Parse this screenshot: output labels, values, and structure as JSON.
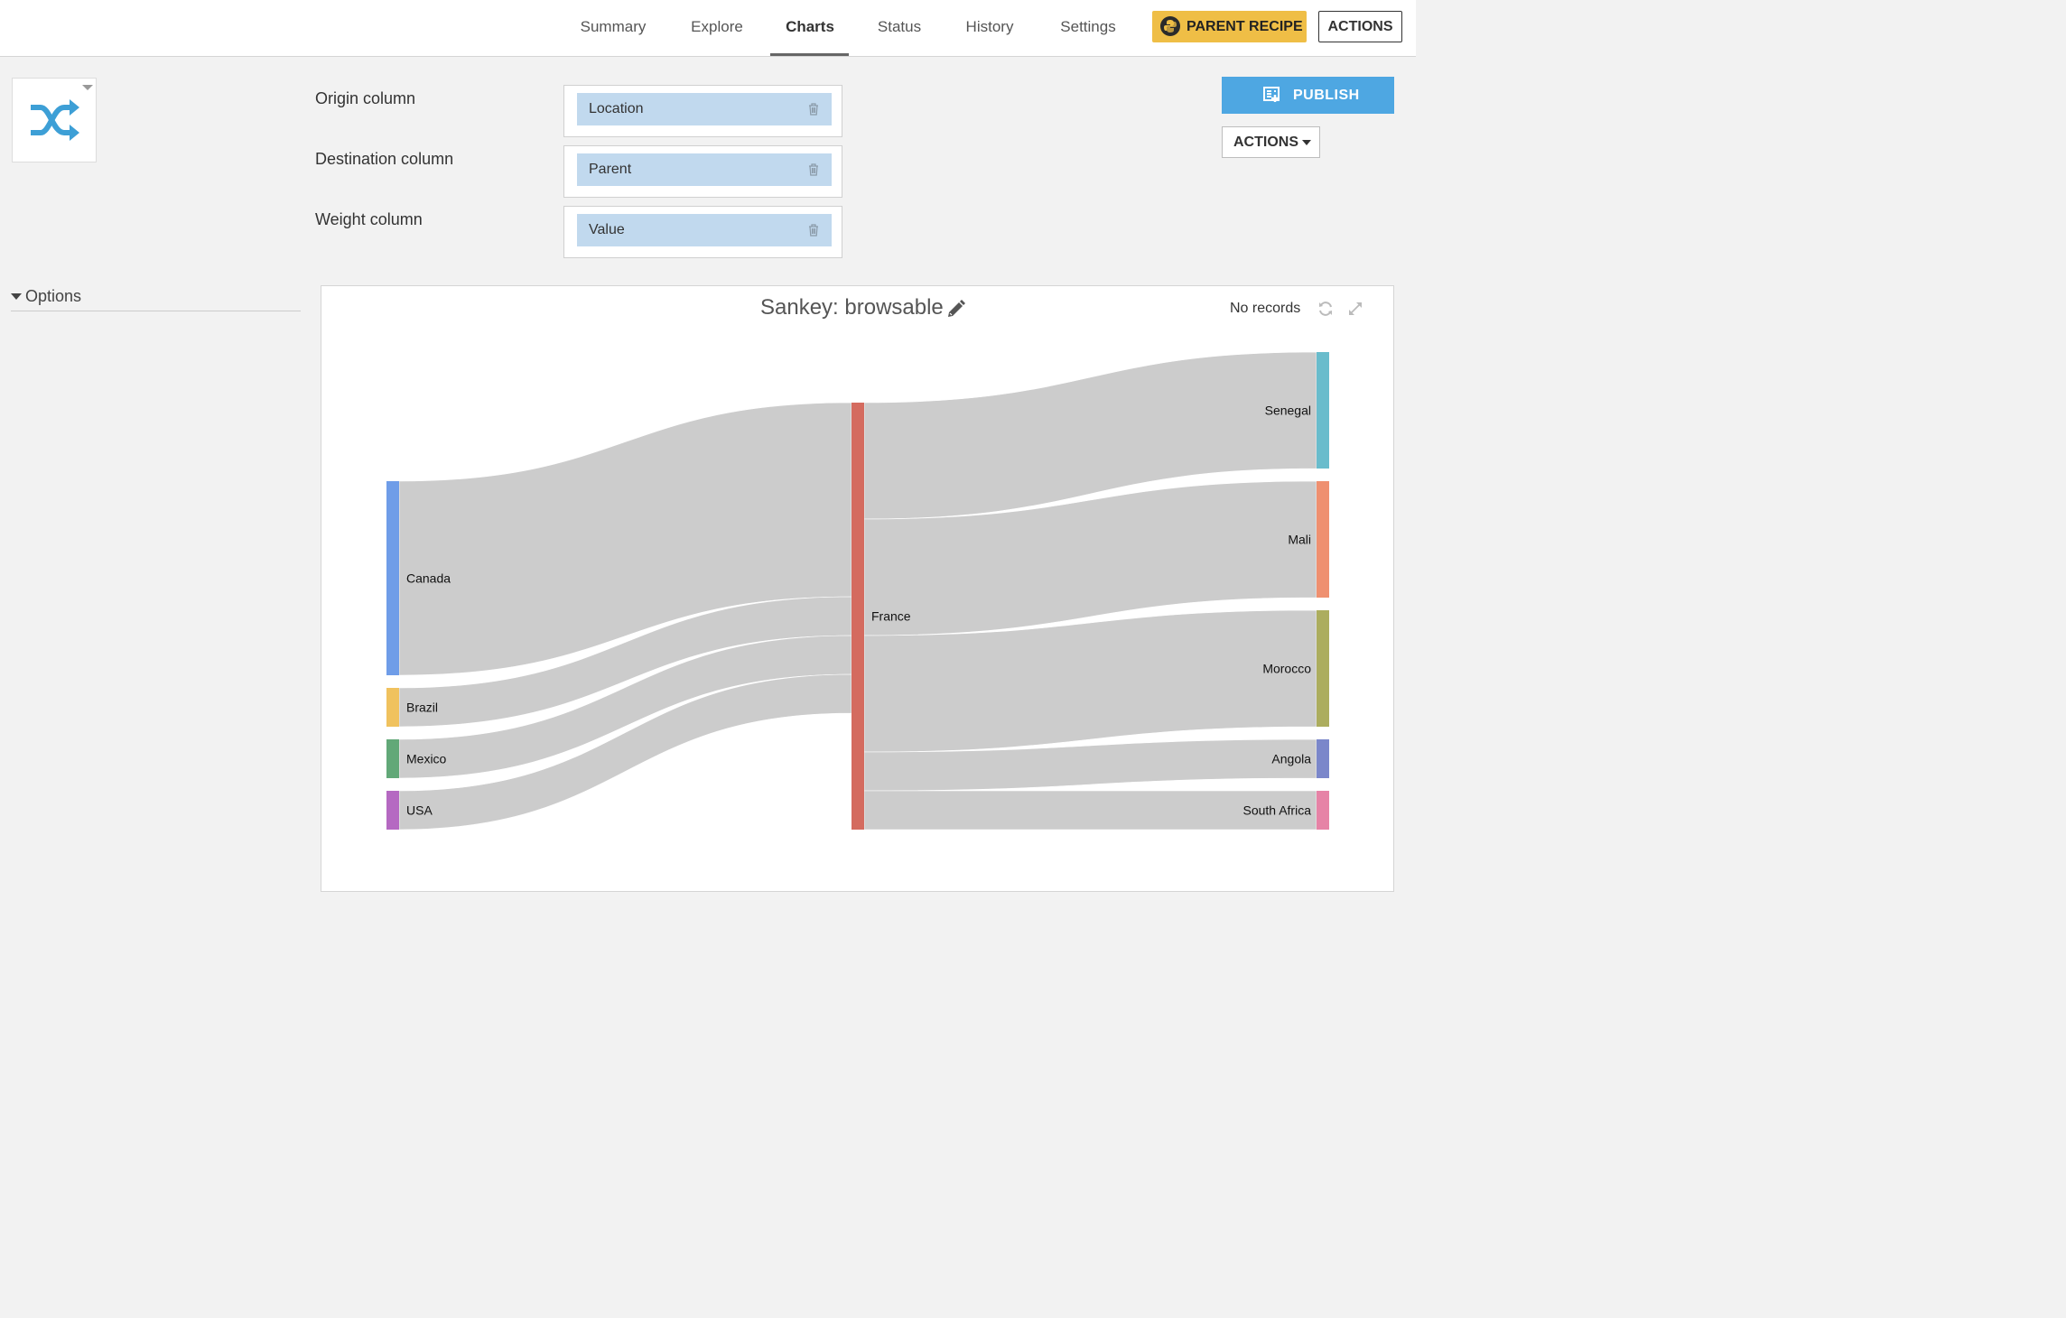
{
  "nav": {
    "tabs": [
      {
        "label": "Summary"
      },
      {
        "label": "Explore"
      },
      {
        "label": "Charts"
      },
      {
        "label": "Status"
      },
      {
        "label": "History"
      },
      {
        "label": "Settings"
      }
    ],
    "active_tab": "Charts",
    "parent_recipe_label": "PARENT RECIPE",
    "actions_label": "ACTIONS"
  },
  "chart_type_icon": "shuffle-icon",
  "fields": {
    "origin": {
      "label": "Origin column",
      "value": "Location"
    },
    "destination": {
      "label": "Destination column",
      "value": "Parent"
    },
    "weight": {
      "label": "Weight column",
      "value": "Value"
    }
  },
  "publish_label": "PUBLISH",
  "actions_label": "ACTIONS",
  "options_label": "Options",
  "chart_header": {
    "title": "Sankey: browsable",
    "status": "No records"
  },
  "colors": {
    "accent_blue": "#4ea7e2",
    "parent_recipe": "#efbe46",
    "pill": "#c1d9ee",
    "link": "#cccccc"
  },
  "chart_data": {
    "type": "sankey",
    "title": "Sankey: browsable",
    "nodes": [
      {
        "name": "Canada",
        "column": 0,
        "color": "#6f9de8"
      },
      {
        "name": "Brazil",
        "column": 0,
        "color": "#f0c25e"
      },
      {
        "name": "Mexico",
        "column": 0,
        "color": "#62a878"
      },
      {
        "name": "USA",
        "column": 0,
        "color": "#b569c2"
      },
      {
        "name": "France",
        "column": 1,
        "color": "#d46b5f"
      },
      {
        "name": "Senegal",
        "column": 2,
        "color": "#69bccc"
      },
      {
        "name": "Mali",
        "column": 2,
        "color": "#ef9070"
      },
      {
        "name": "Morocco",
        "column": 2,
        "color": "#acad5e"
      },
      {
        "name": "Angola",
        "column": 2,
        "color": "#7b87ca"
      },
      {
        "name": "South Africa",
        "column": 2,
        "color": "#e683a6"
      }
    ],
    "links": [
      {
        "source": "Canada",
        "target": "France",
        "value": 5
      },
      {
        "source": "Brazil",
        "target": "France",
        "value": 1
      },
      {
        "source": "Mexico",
        "target": "France",
        "value": 1
      },
      {
        "source": "USA",
        "target": "France",
        "value": 1
      },
      {
        "source": "France",
        "target": "Senegal",
        "value": 3
      },
      {
        "source": "France",
        "target": "Mali",
        "value": 3
      },
      {
        "source": "France",
        "target": "Morocco",
        "value": 3
      },
      {
        "source": "France",
        "target": "Angola",
        "value": 1
      },
      {
        "source": "France",
        "target": "South Africa",
        "value": 1
      }
    ]
  }
}
